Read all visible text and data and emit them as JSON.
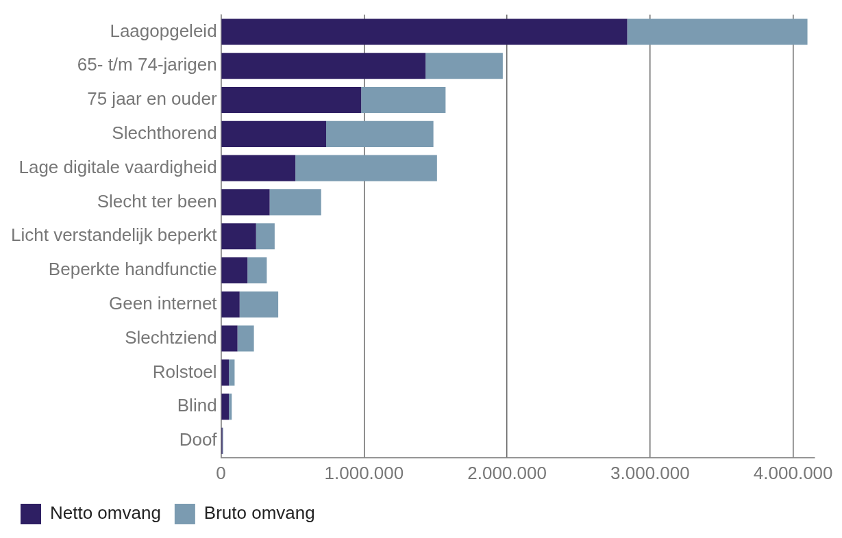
{
  "chart_data": {
    "type": "bar",
    "orientation": "horizontal",
    "stacked": true,
    "categories": [
      "Laagopgeleid",
      "65- t/m 74-jarigen",
      "75 jaar en ouder",
      "Slechthorend",
      "Lage digitale vaardigheid",
      "Slecht ter been",
      "Licht verstandelijk beperkt",
      "Beperkte handfunctie",
      "Geen internet",
      "Slechtziend",
      "Rolstoel",
      "Blind",
      "Doof"
    ],
    "series": [
      {
        "name": "Netto omvang",
        "color": "#2e1f63",
        "values": [
          2840000,
          1430000,
          980000,
          735000,
          520000,
          340000,
          245000,
          185000,
          130000,
          115000,
          55000,
          55000,
          10000
        ]
      },
      {
        "name": "Bruto omvang",
        "color": "#7b9bb1",
        "values": [
          1260000,
          540000,
          590000,
          750000,
          990000,
          360000,
          130000,
          135000,
          270000,
          115000,
          40000,
          20000,
          5000
        ]
      }
    ],
    "xlim": [
      0,
      4150000
    ],
    "xticks": [
      0,
      {
        "value": 1000000,
        "label": "1.000.000"
      },
      {
        "value": 2000000,
        "label": "2.000.000"
      },
      {
        "value": 3000000,
        "label": "3.000.000"
      },
      {
        "value": 4000000,
        "label": "4.000.000"
      }
    ],
    "grid": "x",
    "legend": "bottom left"
  }
}
